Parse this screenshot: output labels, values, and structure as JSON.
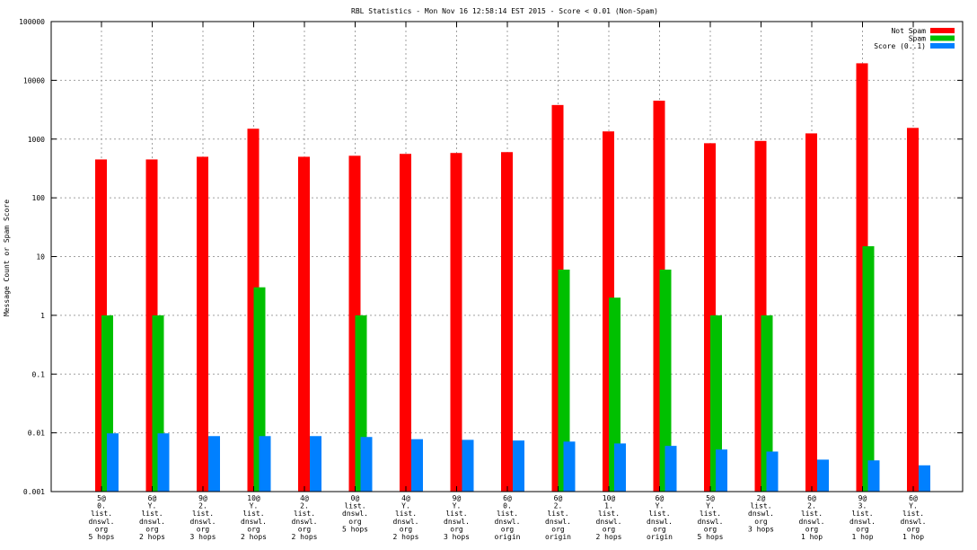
{
  "chart_data": {
    "type": "bar",
    "title": "RBL Statistics - Mon Nov 16 12:58:14 EST 2015 - Score < 0.01 (Non-Spam)",
    "ylabel": "Message Count or Spam Score",
    "xlabel": "",
    "yscale": "log",
    "ylim": [
      0.001,
      100000
    ],
    "yticks": [
      "0.001",
      "0.01",
      "0.1",
      "1",
      "10",
      "100",
      "1000",
      "10000",
      "100000"
    ],
    "grid": true,
    "legend_position": "top-right",
    "categories": [
      [
        "5@",
        "0.",
        "list.",
        "dnswl.",
        "org",
        "5 hops"
      ],
      [
        "6@",
        "Y.",
        "list.",
        "dnswl.",
        "org",
        "2 hops"
      ],
      [
        "9@",
        "2.",
        "list.",
        "dnswl.",
        "org",
        "3 hops"
      ],
      [
        "10@",
        "Y.",
        "list.",
        "dnswl.",
        "org",
        "2 hops"
      ],
      [
        "4@",
        "2.",
        "list.",
        "dnswl.",
        "org",
        "2 hops"
      ],
      [
        "0@",
        "list.",
        "dnswl.",
        "org",
        "5 hops"
      ],
      [
        "4@",
        "Y.",
        "list.",
        "dnswl.",
        "org",
        "2 hops"
      ],
      [
        "9@",
        "Y.",
        "list.",
        "dnswl.",
        "org",
        "3 hops"
      ],
      [
        "6@",
        "0.",
        "list.",
        "dnswl.",
        "org",
        "origin"
      ],
      [
        "6@",
        "2.",
        "list.",
        "dnswl.",
        "org",
        "origin"
      ],
      [
        "10@",
        "1.",
        "list.",
        "dnswl.",
        "org",
        "2 hops"
      ],
      [
        "6@",
        "Y.",
        "list.",
        "dnswl.",
        "org",
        "origin"
      ],
      [
        "5@",
        "Y.",
        "list.",
        "dnswl.",
        "org",
        "5 hops"
      ],
      [
        "2@",
        "list.",
        "dnswl.",
        "org",
        "3 hops"
      ],
      [
        "6@",
        "2.",
        "list.",
        "dnswl.",
        "org",
        "1 hop"
      ],
      [
        "9@",
        "3.",
        "list.",
        "dnswl.",
        "org",
        "1 hop"
      ],
      [
        "6@",
        "Y.",
        "list.",
        "dnswl.",
        "org",
        "1 hop"
      ]
    ],
    "series": [
      {
        "name": "Not Spam",
        "color": "#ff0000",
        "values": [
          450,
          450,
          500,
          1500,
          500,
          520,
          560,
          580,
          600,
          3800,
          1350,
          4500,
          850,
          930,
          1250,
          19500,
          1550
        ]
      },
      {
        "name": "Spam",
        "color": "#00c000",
        "values": [
          1,
          1,
          null,
          3,
          null,
          1,
          null,
          null,
          null,
          6,
          2,
          6,
          1,
          1,
          null,
          15,
          null
        ]
      },
      {
        "name": "Score (0..1)",
        "color": "#0080ff",
        "values": [
          0.0098,
          0.0098,
          0.0088,
          0.0088,
          0.0088,
          0.0085,
          0.0078,
          0.0076,
          0.0074,
          0.0071,
          0.0066,
          0.006,
          0.0052,
          0.0048,
          0.0035,
          0.0034,
          0.0028
        ]
      }
    ]
  }
}
